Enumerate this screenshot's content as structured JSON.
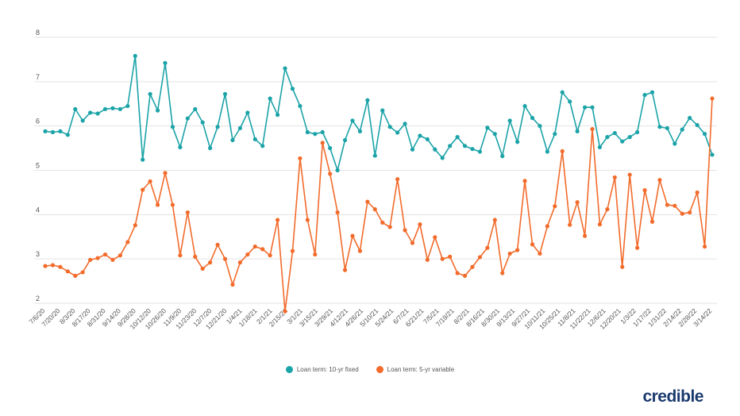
{
  "chart_data": {
    "type": "line",
    "title": "",
    "xlabel": "",
    "ylabel": "",
    "ylim": [
      2,
      8
    ],
    "yticks": [
      "2",
      "3",
      "4",
      "5",
      "6",
      "7",
      "8"
    ],
    "grid": true,
    "legend_position": "bottom-center",
    "x_tick_labels": [
      "7/6/20",
      "7/20/20",
      "8/3/20",
      "8/17/20",
      "8/31/20",
      "9/14/20",
      "9/28/20",
      "10/12/20",
      "10/26/20",
      "11/9/20",
      "11/23/20",
      "12/7/20",
      "12/21/20",
      "1/4/21",
      "1/18/21",
      "2/1/21",
      "2/15/21",
      "3/1/21",
      "3/15/21",
      "3/29/21",
      "4/12/21",
      "4/26/21",
      "5/10/21",
      "5/24/21",
      "6/7/21",
      "6/21/21",
      "7/5/21",
      "7/19/21",
      "8/2/21",
      "8/16/21",
      "8/30/21",
      "9/13/21",
      "9/27/21",
      "10/11/21",
      "10/25/21",
      "11/8/21",
      "11/22/21",
      "12/6/21",
      "12/20/21",
      "1/3/22",
      "1/17/22",
      "1/31/22",
      "2/14/22",
      "2/28/22",
      "3/14/22"
    ],
    "series": [
      {
        "name": "Loan term: 10-yr fixed",
        "color": "#1ba3a8",
        "values": [
          5.88,
          5.86,
          5.88,
          5.8,
          6.38,
          6.12,
          6.3,
          6.28,
          6.38,
          6.4,
          6.38,
          6.45,
          7.58,
          5.24,
          6.72,
          6.35,
          7.42,
          5.98,
          5.52,
          6.17,
          6.38,
          6.08,
          5.5,
          5.98,
          6.72,
          5.68,
          5.95,
          6.3,
          5.7,
          5.55,
          6.62,
          6.25,
          7.3,
          6.84,
          6.45,
          5.86,
          5.82,
          5.86,
          5.5,
          5.0,
          5.68,
          6.12,
          5.88,
          6.58,
          5.33,
          6.35,
          5.98,
          5.85,
          6.05,
          5.47,
          5.78,
          5.7,
          5.47,
          5.28,
          5.55,
          5.75,
          5.55,
          5.48,
          5.42,
          5.96,
          5.82,
          5.32,
          6.12,
          5.64,
          6.45,
          6.18,
          6.0,
          5.42,
          5.82,
          6.76,
          6.55,
          5.88,
          6.42,
          6.42,
          5.52,
          5.75,
          5.84,
          5.65,
          5.75,
          5.86,
          6.7,
          6.76,
          5.98,
          5.95,
          5.6,
          5.92,
          6.18,
          6.02,
          5.82,
          5.35
        ]
      },
      {
        "name": "Loan term: 5-yr variable",
        "color": "#f26b2b",
        "values": [
          2.84,
          2.86,
          2.82,
          2.72,
          2.62,
          2.7,
          2.98,
          3.02,
          3.1,
          2.98,
          3.08,
          3.38,
          3.76,
          4.56,
          4.75,
          4.22,
          4.94,
          4.22,
          3.08,
          4.05,
          3.05,
          2.78,
          2.92,
          3.32,
          3.0,
          2.42,
          2.92,
          3.1,
          3.28,
          3.22,
          3.08,
          3.88,
          1.82,
          3.18,
          5.27,
          3.88,
          3.1,
          5.62,
          4.92,
          4.05,
          2.75,
          3.52,
          3.18,
          4.29,
          4.12,
          3.82,
          3.72,
          4.8,
          3.65,
          3.36,
          3.78,
          2.98,
          3.49,
          3.0,
          3.05,
          2.68,
          2.62,
          2.82,
          3.04,
          3.25,
          3.88,
          2.68,
          3.12,
          3.2,
          4.76,
          3.33,
          3.12,
          3.74,
          4.19,
          5.43,
          3.77,
          4.28,
          3.52,
          5.93,
          3.78,
          4.12,
          4.84,
          2.82,
          4.9,
          3.25,
          4.55,
          3.84,
          4.78,
          4.22,
          4.2,
          4.02,
          4.05,
          4.5,
          3.28,
          6.62
        ]
      }
    ]
  },
  "brand": {
    "name": "credible"
  }
}
